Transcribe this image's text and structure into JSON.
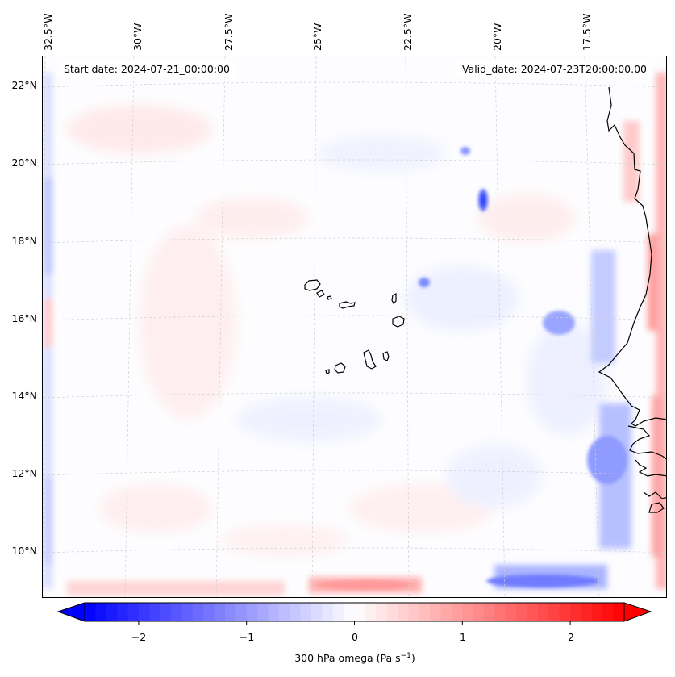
{
  "header": {
    "start_date": "Start date: 2024-07-21_00:00:00",
    "valid_date": "Valid_date: 2024-07-23T20:00:00.00"
  },
  "map": {
    "longitude_labels": [
      "32.5°W",
      "30°W",
      "27.5°W",
      "25°W",
      "22.5°W",
      "20°W",
      "17.5°W"
    ],
    "latitude_labels": [
      "22°N",
      "20°N",
      "18°N",
      "16°N",
      "14°N",
      "12°N",
      "10°N"
    ],
    "gridlines": true,
    "extent": {
      "lon_min": -33.0,
      "lon_max": -15.5,
      "lat_min": 8.9,
      "lat_max": 22.8
    }
  },
  "colorbar": {
    "label_prefix": "300 hPa omega (Pa s",
    "label_exponent": "−1",
    "label_suffix": ")",
    "tick_labels": [
      "−2",
      "−1",
      "0",
      "1",
      "2"
    ],
    "tick_values": [
      -2,
      -1,
      0,
      1,
      2
    ],
    "range": [
      -2.5,
      2.5
    ],
    "extend": "both",
    "colormap": "bwr",
    "color_low": "#0000ff",
    "color_mid": "#ffffff",
    "color_high": "#ff0000"
  },
  "colors": {
    "coastline": "#000000",
    "gridline": "#cccccc"
  }
}
